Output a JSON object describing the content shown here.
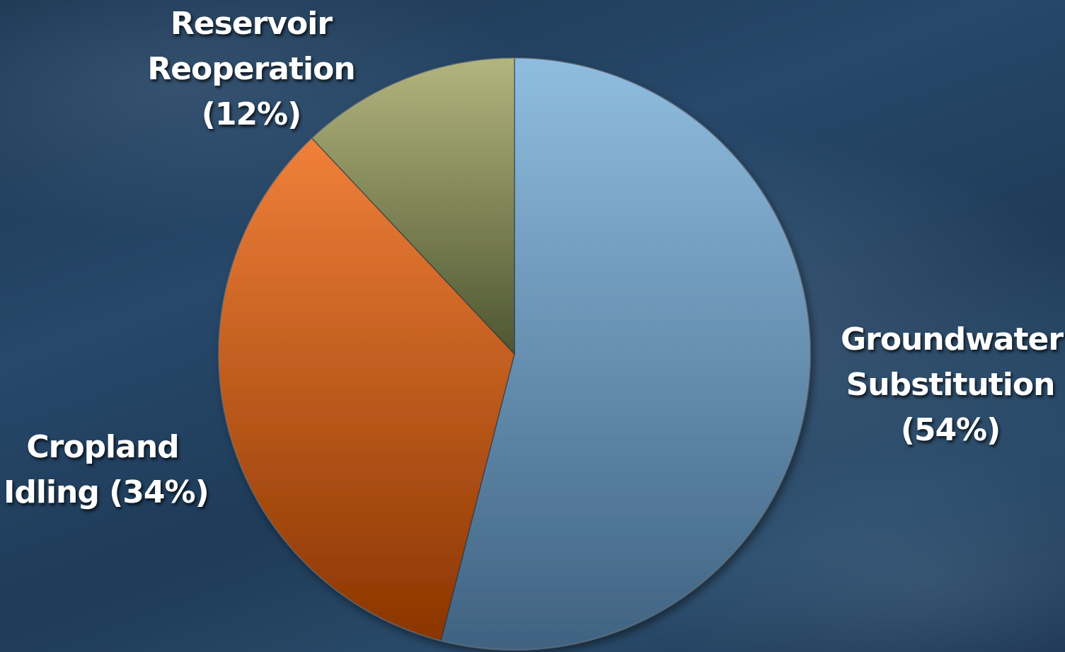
{
  "chart_data": {
    "type": "pie",
    "slices": [
      {
        "name": "Groundwater Substitution",
        "value": 54,
        "label_lines": [
          "Groundwater",
          "Substitution",
          "(54%)"
        ],
        "color_light": "#8fbde0",
        "color_dark": "#3f6281"
      },
      {
        "name": "Cropland Idling",
        "value": 34,
        "label_lines": [
          "Cropland",
          "Idling (34%)"
        ],
        "color_light": "#f0803a",
        "color_dark": "#8a3500"
      },
      {
        "name": "Reservoir Reoperation",
        "value": 12,
        "label_lines": [
          "Reservoir",
          "Reoperation",
          "(12%)"
        ],
        "color_light": "#b3b57e",
        "color_dark": "#4d5630"
      }
    ],
    "start_angle_deg": 0,
    "direction": "clockwise",
    "legend": "none",
    "data_labels": "outside"
  }
}
